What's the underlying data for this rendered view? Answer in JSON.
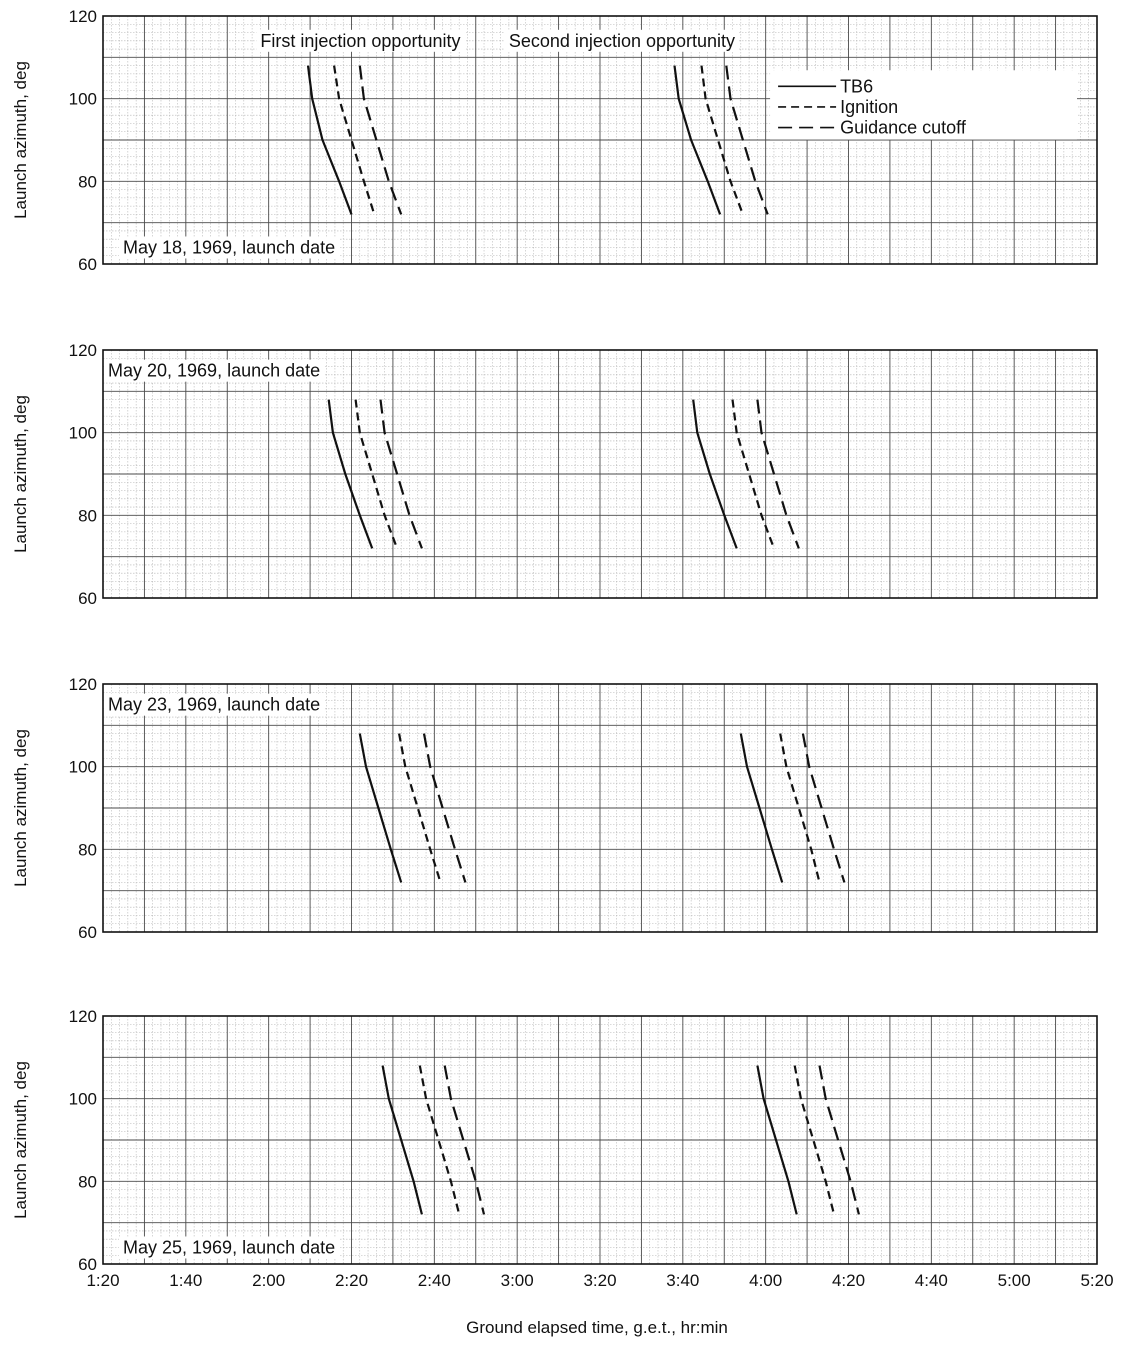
{
  "chart_data": {
    "x_label": "Ground elapsed time, g.e.t., hr:min",
    "x_ticks": [
      "1:20",
      "1:40",
      "2:00",
      "2:20",
      "2:40",
      "3:00",
      "3:20",
      "3:40",
      "4:00",
      "4:20",
      "4:40",
      "5:00",
      "5:20"
    ],
    "x_range_minutes": [
      80,
      320
    ],
    "opportunity_labels": [
      "First injection opportunity",
      "Second injection opportunity"
    ],
    "legend": [
      {
        "name": "TB6",
        "style": "solid"
      },
      {
        "name": "Ignition",
        "style": "short-dash"
      },
      {
        "name": "Guidance cutoff",
        "style": "long-dash"
      }
    ],
    "panels": [
      {
        "type": "line",
        "title": "May 18, 1969, launch date",
        "ylabel": "Launch azimuth, deg",
        "ylim": [
          60,
          120
        ],
        "y_ticks": [
          "60",
          "80",
          "100",
          "120"
        ],
        "series": [
          {
            "name": "TB6",
            "x": [
              129.5,
              130.5,
              133,
              137,
              140
            ],
            "y": [
              108,
              100,
              90,
              80,
              72
            ]
          },
          {
            "name": "Ignition",
            "x": [
              135.8,
              137,
              140,
              143,
              145.5
            ],
            "y": [
              108,
              100,
              90,
              80,
              72
            ]
          },
          {
            "name": "Guidance cutoff",
            "x": [
              142,
              143,
              146,
              149,
              152
            ],
            "y": [
              108,
              100,
              90,
              80,
              72
            ]
          },
          {
            "name": "TB6",
            "x": [
              218,
              219,
              222,
              226,
              229
            ],
            "y": [
              108,
              100,
              90,
              80,
              72
            ]
          },
          {
            "name": "Ignition",
            "x": [
              224.5,
              225.5,
              228.5,
              231.5,
              234.5
            ],
            "y": [
              108,
              100,
              90,
              80,
              72
            ]
          },
          {
            "name": "Guidance cutoff",
            "x": [
              230.5,
              231.5,
              234.5,
              237.5,
              240.5
            ],
            "y": [
              108,
              100,
              90,
              80,
              72
            ]
          }
        ]
      },
      {
        "type": "line",
        "title": "May 20, 1969, launch date",
        "ylabel": "Launch azimuth, deg",
        "ylim": [
          60,
          120
        ],
        "y_ticks": [
          "60",
          "80",
          "100",
          "120"
        ],
        "series": [
          {
            "name": "TB6",
            "x": [
              134.5,
              135.5,
              138.5,
              142,
              145
            ],
            "y": [
              108,
              100,
              90,
              80,
              72
            ]
          },
          {
            "name": "Ignition",
            "x": [
              141,
              142,
              145,
              148,
              151
            ],
            "y": [
              108,
              100,
              90,
              80,
              72
            ]
          },
          {
            "name": "Guidance cutoff",
            "x": [
              147,
              148,
              151,
              154,
              157
            ],
            "y": [
              108,
              100,
              90,
              80,
              72
            ]
          },
          {
            "name": "TB6",
            "x": [
              222.5,
              223.5,
              226.5,
              230,
              233
            ],
            "y": [
              108,
              100,
              90,
              80,
              72
            ]
          },
          {
            "name": "Ignition",
            "x": [
              232,
              233,
              236,
              239,
              242
            ],
            "y": [
              108,
              100,
              90,
              80,
              72
            ]
          },
          {
            "name": "Guidance cutoff",
            "x": [
              238,
              239,
              242,
              245,
              248
            ],
            "y": [
              108,
              100,
              90,
              80,
              72
            ]
          }
        ]
      },
      {
        "type": "line",
        "title": "May 23, 1969, launch date",
        "ylabel": "Launch azimuth, deg",
        "ylim": [
          60,
          120
        ],
        "y_ticks": [
          "60",
          "80",
          "100",
          "120"
        ],
        "series": [
          {
            "name": "TB6",
            "x": [
              142,
              143.5,
              146.5,
              149.5,
              152
            ],
            "y": [
              108,
              100,
              90,
              80,
              72
            ]
          },
          {
            "name": "Ignition",
            "x": [
              151.5,
              153,
              156,
              159,
              161.5
            ],
            "y": [
              108,
              100,
              90,
              80,
              72
            ]
          },
          {
            "name": "Guidance cutoff",
            "x": [
              157.5,
              159,
              162,
              165,
              167.5
            ],
            "y": [
              108,
              100,
              90,
              80,
              72
            ]
          },
          {
            "name": "TB6",
            "x": [
              234,
              235.5,
              238.5,
              241.5,
              244
            ],
            "y": [
              108,
              100,
              90,
              80,
              72
            ]
          },
          {
            "name": "Ignition",
            "x": [
              243.5,
              245,
              248,
              251,
              253
            ],
            "y": [
              108,
              100,
              90,
              80,
              72
            ]
          },
          {
            "name": "Guidance cutoff",
            "x": [
              249,
              250.5,
              253.5,
              256.5,
              259
            ],
            "y": [
              108,
              100,
              90,
              80,
              72
            ]
          }
        ]
      },
      {
        "type": "line",
        "title": "May 25, 1969, launch date",
        "ylabel": "Launch azimuth, deg",
        "ylim": [
          60,
          120
        ],
        "y_ticks": [
          "60",
          "80",
          "100",
          "120"
        ],
        "series": [
          {
            "name": "TB6",
            "x": [
              147.5,
              149,
              152,
              155,
              157
            ],
            "y": [
              108,
              100,
              90,
              80,
              72
            ]
          },
          {
            "name": "Ignition",
            "x": [
              156.5,
              158,
              161,
              164,
              166
            ],
            "y": [
              108,
              100,
              90,
              80,
              72
            ]
          },
          {
            "name": "Guidance cutoff",
            "x": [
              162.5,
              164,
              167,
              170,
              172
            ],
            "y": [
              108,
              100,
              90,
              80,
              72
            ]
          },
          {
            "name": "TB6",
            "x": [
              238,
              239.5,
              242.5,
              245.5,
              247.5
            ],
            "y": [
              108,
              100,
              90,
              80,
              72
            ]
          },
          {
            "name": "Ignition",
            "x": [
              247,
              248.5,
              251.5,
              254.5,
              256.5
            ],
            "y": [
              108,
              100,
              90,
              80,
              72
            ]
          },
          {
            "name": "Guidance cutoff",
            "x": [
              253,
              254.5,
              257.5,
              260.5,
              262.5
            ],
            "y": [
              108,
              100,
              90,
              80,
              72
            ]
          }
        ]
      }
    ]
  }
}
